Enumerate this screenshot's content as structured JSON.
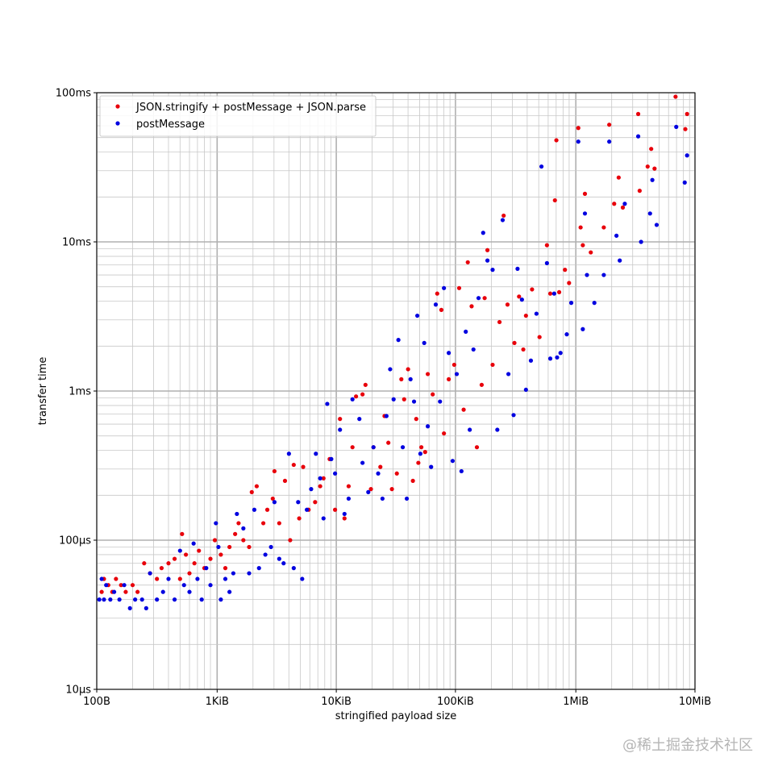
{
  "chart_data": {
    "type": "scatter",
    "xscale": "log",
    "yscale": "log",
    "xlabel": "stringified payload size",
    "ylabel": "transfer time",
    "xlim": [
      100,
      10485760
    ],
    "ylim": [
      1e-05,
      0.1
    ],
    "grid": true,
    "legend_position": "top-left",
    "x_ticks": [
      {
        "value": 100,
        "label": "100B"
      },
      {
        "value": 1024,
        "label": "1KiB"
      },
      {
        "value": 10240,
        "label": "10KiB"
      },
      {
        "value": 102400,
        "label": "100KiB"
      },
      {
        "value": 1048576,
        "label": "1MiB"
      },
      {
        "value": 10485760,
        "label": "10MiB"
      }
    ],
    "y_ticks": [
      {
        "value": 1e-05,
        "label": "10µs"
      },
      {
        "value": 0.0001,
        "label": "100µs"
      },
      {
        "value": 0.001,
        "label": "1ms"
      },
      {
        "value": 0.01,
        "label": "10ms"
      },
      {
        "value": 0.1,
        "label": "100ms"
      }
    ],
    "series": [
      {
        "name": "JSON.stringify + postMessage + JSON.parse",
        "color": "#e8000b",
        "points": [
          [
            110,
            4.5e-05
          ],
          [
            115,
            5.5e-05
          ],
          [
            125,
            5e-05
          ],
          [
            135,
            4.5e-05
          ],
          [
            145,
            5.5e-05
          ],
          [
            160,
            5e-05
          ],
          [
            175,
            4.5e-05
          ],
          [
            200,
            5e-05
          ],
          [
            220,
            4.5e-05
          ],
          [
            250,
            7e-05
          ],
          [
            280,
            6e-05
          ],
          [
            320,
            5.5e-05
          ],
          [
            350,
            6.5e-05
          ],
          [
            400,
            7e-05
          ],
          [
            450,
            7.5e-05
          ],
          [
            500,
            5.5e-05
          ],
          [
            520,
            0.00011
          ],
          [
            560,
            8e-05
          ],
          [
            600,
            6e-05
          ],
          [
            660,
            7e-05
          ],
          [
            720,
            8.5e-05
          ],
          [
            800,
            6.5e-05
          ],
          [
            900,
            7.5e-05
          ],
          [
            980,
            0.0001
          ],
          [
            1100,
            8e-05
          ],
          [
            1200,
            6.5e-05
          ],
          [
            1300,
            9e-05
          ],
          [
            1450,
            0.00011
          ],
          [
            1550,
            0.00013
          ],
          [
            1700,
            0.0001
          ],
          [
            1900,
            9e-05
          ],
          [
            2000,
            0.00021
          ],
          [
            2200,
            0.00023
          ],
          [
            2500,
            0.00013
          ],
          [
            2700,
            0.00016
          ],
          [
            3000,
            0.00019
          ],
          [
            3100,
            0.00029
          ],
          [
            3400,
            0.00013
          ],
          [
            3800,
            0.00025
          ],
          [
            4200,
            0.0001
          ],
          [
            4500,
            0.00032
          ],
          [
            5000,
            0.00014
          ],
          [
            5400,
            0.00031
          ],
          [
            6000,
            0.00016
          ],
          [
            6800,
            0.00018
          ],
          [
            7500,
            0.00023
          ],
          [
            8000,
            0.00026
          ],
          [
            9000,
            0.00035
          ],
          [
            10000,
            0.00016
          ],
          [
            11000,
            0.00065
          ],
          [
            12000,
            0.00014
          ],
          [
            13000,
            0.00023
          ],
          [
            14000,
            0.00042
          ],
          [
            15000,
            0.00092
          ],
          [
            17000,
            0.00095
          ],
          [
            18000,
            0.0011
          ],
          [
            20000,
            0.00022
          ],
          [
            21000,
            0.00042
          ],
          [
            24000,
            0.00031
          ],
          [
            26000,
            0.00068
          ],
          [
            28000,
            0.00045
          ],
          [
            30000,
            0.00022
          ],
          [
            33000,
            0.00028
          ],
          [
            36000,
            0.0012
          ],
          [
            38000,
            0.00088
          ],
          [
            41000,
            0.0014
          ],
          [
            45000,
            0.00025
          ],
          [
            48000,
            0.00065
          ],
          [
            50000,
            0.00033
          ],
          [
            53000,
            0.00042
          ],
          [
            57000,
            0.00039
          ],
          [
            60000,
            0.0013
          ],
          [
            66000,
            0.00095
          ],
          [
            72000,
            0.0045
          ],
          [
            78000,
            0.0035
          ],
          [
            82000,
            0.00052
          ],
          [
            90000,
            0.0012
          ],
          [
            100000,
            0.0015
          ],
          [
            110000,
            0.0049
          ],
          [
            120000,
            0.00075
          ],
          [
            130000,
            0.0073
          ],
          [
            140000,
            0.0037
          ],
          [
            155000,
            0.00042
          ],
          [
            170000,
            0.0011
          ],
          [
            180000,
            0.0042
          ],
          [
            190000,
            0.0088
          ],
          [
            210000,
            0.0015
          ],
          [
            240000,
            0.0029
          ],
          [
            260000,
            0.015
          ],
          [
            280000,
            0.0038
          ],
          [
            320000,
            0.0021
          ],
          [
            350000,
            0.0043
          ],
          [
            380000,
            0.0019
          ],
          [
            400000,
            0.0032
          ],
          [
            450000,
            0.0048
          ],
          [
            520000,
            0.0023
          ],
          [
            600000,
            0.0095
          ],
          [
            640000,
            0.0045
          ],
          [
            700000,
            0.019
          ],
          [
            720000,
            0.048
          ],
          [
            760000,
            0.0046
          ],
          [
            850000,
            0.0065
          ],
          [
            920000,
            0.0053
          ],
          [
            1100000,
            0.058
          ],
          [
            1150000,
            0.0125
          ],
          [
            1200000,
            0.0095
          ],
          [
            1250000,
            0.021
          ],
          [
            1400000,
            0.0085
          ],
          [
            1800000,
            0.0125
          ],
          [
            2000000,
            0.061
          ],
          [
            2200000,
            0.018
          ],
          [
            2400000,
            0.027
          ],
          [
            2600000,
            0.017
          ],
          [
            3500000,
            0.072
          ],
          [
            3600000,
            0.022
          ],
          [
            4200000,
            0.032
          ],
          [
            4500000,
            0.042
          ],
          [
            4800000,
            0.031
          ],
          [
            7200000,
            0.094
          ],
          [
            8700000,
            0.057
          ],
          [
            9000000,
            0.072
          ]
        ]
      },
      {
        "name": "postMessage",
        "color": "#0000e0",
        "points": [
          [
            105,
            4e-05
          ],
          [
            110,
            5.5e-05
          ],
          [
            115,
            4e-05
          ],
          [
            120,
            5e-05
          ],
          [
            130,
            4e-05
          ],
          [
            140,
            4.5e-05
          ],
          [
            155,
            4e-05
          ],
          [
            170,
            5e-05
          ],
          [
            190,
            3.5e-05
          ],
          [
            210,
            4e-05
          ],
          [
            240,
            4e-05
          ],
          [
            260,
            3.5e-05
          ],
          [
            280,
            6e-05
          ],
          [
            320,
            4e-05
          ],
          [
            360,
            4.5e-05
          ],
          [
            400,
            5.5e-05
          ],
          [
            450,
            4e-05
          ],
          [
            500,
            8.5e-05
          ],
          [
            540,
            5e-05
          ],
          [
            600,
            4.5e-05
          ],
          [
            650,
            9.5e-05
          ],
          [
            700,
            5.5e-05
          ],
          [
            760,
            4e-05
          ],
          [
            830,
            6.5e-05
          ],
          [
            900,
            5e-05
          ],
          [
            1000,
            0.00013
          ],
          [
            1050,
            9e-05
          ],
          [
            1100,
            4e-05
          ],
          [
            1200,
            5.5e-05
          ],
          [
            1300,
            4.5e-05
          ],
          [
            1400,
            6e-05
          ],
          [
            1500,
            0.00015
          ],
          [
            1700,
            0.00012
          ],
          [
            1900,
            6e-05
          ],
          [
            2100,
            0.00016
          ],
          [
            2300,
            6.5e-05
          ],
          [
            2600,
            8e-05
          ],
          [
            2900,
            9e-05
          ],
          [
            3100,
            0.00018
          ],
          [
            3400,
            7.5e-05
          ],
          [
            3700,
            7e-05
          ],
          [
            4100,
            0.00038
          ],
          [
            4500,
            6.5e-05
          ],
          [
            4900,
            0.00018
          ],
          [
            5300,
            5.5e-05
          ],
          [
            5800,
            0.00016
          ],
          [
            6300,
            0.00022
          ],
          [
            6900,
            0.00038
          ],
          [
            7500,
            0.00026
          ],
          [
            8000,
            0.00014
          ],
          [
            8600,
            0.00082
          ],
          [
            9300,
            0.00035
          ],
          [
            10000,
            0.00028
          ],
          [
            11000,
            0.00055
          ],
          [
            12000,
            0.00015
          ],
          [
            13000,
            0.00019
          ],
          [
            14000,
            0.00088
          ],
          [
            16000,
            0.00065
          ],
          [
            17000,
            0.00033
          ],
          [
            19000,
            0.00021
          ],
          [
            21000,
            0.00042
          ],
          [
            23000,
            0.00028
          ],
          [
            25000,
            0.00019
          ],
          [
            27000,
            0.00068
          ],
          [
            29000,
            0.0014
          ],
          [
            31000,
            0.00088
          ],
          [
            34000,
            0.0022
          ],
          [
            37000,
            0.00042
          ],
          [
            40000,
            0.00019
          ],
          [
            43000,
            0.0012
          ],
          [
            46000,
            0.00085
          ],
          [
            49000,
            0.0032
          ],
          [
            52000,
            0.00038
          ],
          [
            56000,
            0.0021
          ],
          [
            60000,
            0.00058
          ],
          [
            64000,
            0.00031
          ],
          [
            70000,
            0.0038
          ],
          [
            76000,
            0.00085
          ],
          [
            82000,
            0.0049
          ],
          [
            90000,
            0.0018
          ],
          [
            97000,
            0.00034
          ],
          [
            105000,
            0.0013
          ],
          [
            115000,
            0.00029
          ],
          [
            125000,
            0.0025
          ],
          [
            135000,
            0.00055
          ],
          [
            145000,
            0.0019
          ],
          [
            160000,
            0.0042
          ],
          [
            175000,
            0.0115
          ],
          [
            190000,
            0.0075
          ],
          [
            210000,
            0.0065
          ],
          [
            230000,
            0.00055
          ],
          [
            255000,
            0.014
          ],
          [
            285000,
            0.0013
          ],
          [
            315000,
            0.00069
          ],
          [
            340000,
            0.0066
          ],
          [
            370000,
            0.0041
          ],
          [
            400000,
            0.00102
          ],
          [
            440000,
            0.0016
          ],
          [
            490000,
            0.0033
          ],
          [
            540000,
            0.032
          ],
          [
            600000,
            0.0072
          ],
          [
            640000,
            0.00165
          ],
          [
            690000,
            0.0045
          ],
          [
            730000,
            0.00168
          ],
          [
            780000,
            0.0018
          ],
          [
            880000,
            0.0024
          ],
          [
            960000,
            0.0039
          ],
          [
            1100000,
            0.047
          ],
          [
            1200000,
            0.0026
          ],
          [
            1250000,
            0.0155
          ],
          [
            1300000,
            0.006
          ],
          [
            1500000,
            0.0039
          ],
          [
            1800000,
            0.006
          ],
          [
            2000000,
            0.047
          ],
          [
            2300000,
            0.011
          ],
          [
            2450000,
            0.0075
          ],
          [
            2700000,
            0.018
          ],
          [
            3500000,
            0.051
          ],
          [
            3700000,
            0.01
          ],
          [
            4400000,
            0.0155
          ],
          [
            4600000,
            0.026
          ],
          [
            5000000,
            0.013
          ],
          [
            7300000,
            0.059
          ],
          [
            8600000,
            0.025
          ],
          [
            9000000,
            0.038
          ]
        ]
      }
    ]
  },
  "watermark": "@稀土掘金技术社区"
}
